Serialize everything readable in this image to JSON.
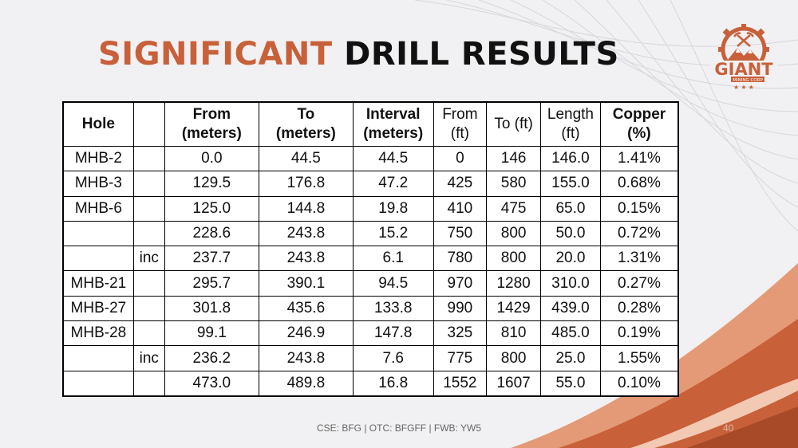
{
  "slide": {
    "title_accent": "SIGNIFICANT",
    "title_rest": "DRILL RESULTS",
    "footer": "CSE: BFG | OTC: BFGFF | FWB: YW5",
    "page_number": "40"
  },
  "logo": {
    "name": "GIANT",
    "subtitle": "MINING CORP",
    "icon": "mountain-pickaxe-gear-icon"
  },
  "colors": {
    "accent": "#c8603a",
    "dark_accent": "#a84a28",
    "background": "#f1f1f3"
  },
  "table": {
    "headers": [
      {
        "line1": "Hole",
        "line2": "",
        "bold": true
      },
      {
        "line1": "",
        "line2": "",
        "bold": false
      },
      {
        "line1": "From",
        "line2": "(meters)",
        "bold": true
      },
      {
        "line1": "To",
        "line2": "(meters)",
        "bold": true
      },
      {
        "line1": "Interval",
        "line2": "(meters)",
        "bold": true
      },
      {
        "line1": "From",
        "line2": "(ft)",
        "bold": false
      },
      {
        "line1": "To (ft)",
        "line2": "",
        "bold": false
      },
      {
        "line1": "Length",
        "line2": "(ft)",
        "bold": false
      },
      {
        "line1": "Copper",
        "line2": "(%)",
        "bold": true
      }
    ],
    "rows": [
      [
        "MHB-2",
        "",
        "0.0",
        "44.5",
        "44.5",
        "0",
        "146",
        "146.0",
        "1.41%"
      ],
      [
        "MHB-3",
        "",
        "129.5",
        "176.8",
        "47.2",
        "425",
        "580",
        "155.0",
        "0.68%"
      ],
      [
        "MHB-6",
        "",
        "125.0",
        "144.8",
        "19.8",
        "410",
        "475",
        "65.0",
        "0.15%"
      ],
      [
        "",
        "",
        "228.6",
        "243.8",
        "15.2",
        "750",
        "800",
        "50.0",
        "0.72%"
      ],
      [
        "",
        "inc",
        "237.7",
        "243.8",
        "6.1",
        "780",
        "800",
        "20.0",
        "1.31%"
      ],
      [
        "MHB-21",
        "",
        "295.7",
        "390.1",
        "94.5",
        "970",
        "1280",
        "310.0",
        "0.27%"
      ],
      [
        "MHB-27",
        "",
        "301.8",
        "435.6",
        "133.8",
        "990",
        "1429",
        "439.0",
        "0.28%"
      ],
      [
        "MHB-28",
        "",
        "99.1",
        "246.9",
        "147.8",
        "325",
        "810",
        "485.0",
        "0.19%"
      ],
      [
        "",
        "inc",
        "236.2",
        "243.8",
        "7.6",
        "775",
        "800",
        "25.0",
        "1.55%"
      ],
      [
        "",
        "",
        "473.0",
        "489.8",
        "16.8",
        "1552",
        "1607",
        "55.0",
        "0.10%"
      ]
    ]
  }
}
